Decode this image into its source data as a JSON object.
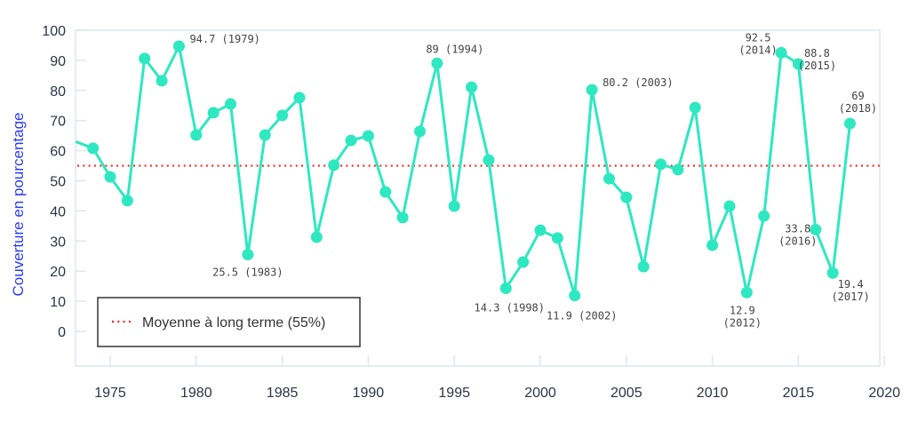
{
  "chart_data": {
    "type": "line",
    "title": "",
    "xlabel": "",
    "ylabel": "Couverture en pourcentage",
    "xlim": [
      1973,
      2020
    ],
    "ylim": [
      -11.5,
      100
    ],
    "x_ticks": [
      "1975",
      "1980",
      "1985",
      "1990",
      "1995",
      "2000",
      "2005",
      "2010",
      "2015",
      "2020"
    ],
    "y_ticks": [
      "0",
      "10",
      "20",
      "30",
      "40",
      "50",
      "60",
      "70",
      "80",
      "90",
      "100"
    ],
    "grid": false,
    "legend_position": "bottom-left",
    "series": [
      {
        "color": "#2de8c0",
        "x": [
          1973,
          1974,
          1975,
          1976,
          1977,
          1978,
          1979,
          1980,
          1981,
          1982,
          1983,
          1984,
          1985,
          1986,
          1987,
          1988,
          1989,
          1990,
          1991,
          1992,
          1993,
          1994,
          1995,
          1996,
          1997,
          1998,
          1999,
          2000,
          2001,
          2002,
          2003,
          2004,
          2005,
          2006,
          2007,
          2008,
          2009,
          2010,
          2011,
          2012,
          2013,
          2014,
          2015,
          2016,
          2017,
          2018
        ],
        "y": [
          63,
          60.8,
          51.3,
          43.4,
          90.6,
          83.2,
          94.7,
          65.2,
          72.6,
          75.5,
          25.5,
          65.2,
          71.7,
          77.6,
          31.3,
          55.2,
          63.4,
          64.9,
          46.3,
          37.8,
          66.4,
          89,
          41.6,
          81.1,
          56.9,
          14.3,
          23,
          33.6,
          31,
          11.9,
          80.2,
          50.7,
          44.5,
          21.5,
          55.5,
          53.7,
          74.3,
          28.6,
          41.6,
          12.9,
          38.3,
          92.5,
          88.8,
          33.8,
          19.4,
          69
        ]
      }
    ],
    "reference_line": {
      "name": "Moyenne à long terme (55%)",
      "value": 55,
      "color": "#ff2020",
      "style": "dotted"
    },
    "annotations": [
      {
        "x": 1979,
        "text": "94.7 (1979)"
      },
      {
        "x": 1983,
        "text": "25.5 (1983)"
      },
      {
        "x": 1994,
        "text": "89 (1994)"
      },
      {
        "x": 1998,
        "text": "14.3 (1998)"
      },
      {
        "x": 2002,
        "text": "11.9 (2002)"
      },
      {
        "x": 2003,
        "text": "80.2 (2003)"
      },
      {
        "x": 2012,
        "text": "12.9",
        "text2": "(2012)"
      },
      {
        "x": 2014,
        "text": "92.5",
        "text2": "(2014)"
      },
      {
        "x": 2015,
        "text": "88.8",
        "text2": "(2015)"
      },
      {
        "x": 2016,
        "text": "33.8",
        "text2": "(2016)"
      },
      {
        "x": 2017,
        "text": "19.4",
        "text2": "(2017)"
      },
      {
        "x": 2018,
        "text": "69",
        "text2": "(2018)"
      }
    ]
  },
  "colors": {
    "axis_label": "#2a3cf5",
    "frame": "#dde6ef",
    "tick_text": "#2b3447"
  }
}
